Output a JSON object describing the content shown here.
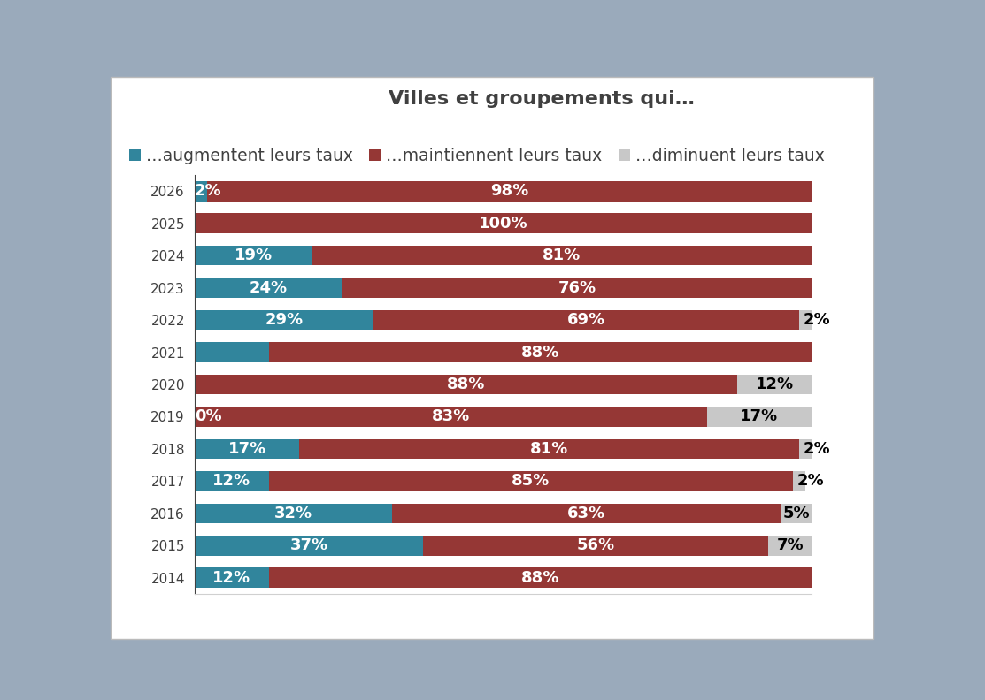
{
  "chart_data": {
    "type": "bar",
    "orientation": "horizontal",
    "stacked": true,
    "title": "Villes et groupements qui…",
    "categories": [
      "2026",
      "2025",
      "2024",
      "2023",
      "2022",
      "2021",
      "2020",
      "2019",
      "2018",
      "2017",
      "2016",
      "2015",
      "2014"
    ],
    "series": [
      {
        "name": "…augmentent leurs taux",
        "color": "#31859c",
        "values": [
          2,
          0,
          19,
          24,
          29,
          12,
          0,
          0,
          17,
          12,
          32,
          37,
          12
        ],
        "value_labels": [
          "2%",
          null,
          "19%",
          "24%",
          "29%",
          null,
          null,
          "0%",
          "17%",
          "12%",
          "32%",
          "37%",
          "12%"
        ]
      },
      {
        "name": "…maintiennent leurs taux",
        "color": "#953735",
        "values": [
          98,
          100,
          81,
          76,
          69,
          88,
          88,
          83,
          81,
          85,
          63,
          56,
          88
        ],
        "value_labels": [
          "98%",
          "100%",
          "81%",
          "76%",
          "69%",
          "88%",
          "88%",
          "83%",
          "81%",
          "85%",
          "63%",
          "56%",
          "88%"
        ]
      },
      {
        "name": "…diminuent leurs taux",
        "color": "#c8c8c8",
        "values": [
          0,
          0,
          0,
          0,
          2,
          0,
          12,
          17,
          2,
          2,
          5,
          7,
          0
        ],
        "value_labels": [
          null,
          null,
          null,
          null,
          "2%",
          null,
          "12%",
          "17%",
          "2%",
          "2%",
          "5%",
          "7%",
          null
        ]
      }
    ],
    "xlim": [
      0,
      100
    ],
    "xticks": [],
    "tick_labels": "y",
    "data_labels": true,
    "legend": "top",
    "grid": false
  }
}
